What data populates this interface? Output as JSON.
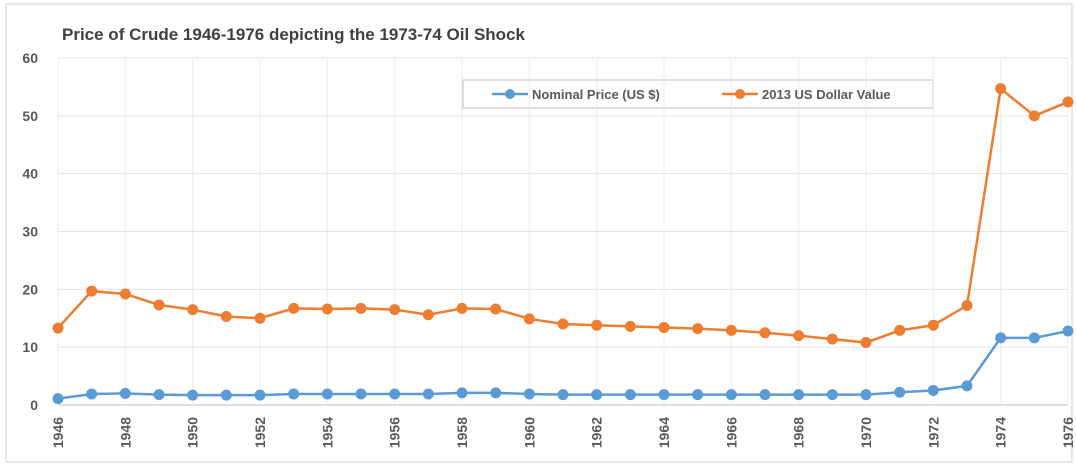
{
  "chart_data": {
    "type": "line",
    "title": "Price of Crude 1946-1976 depicting the 1973-74 Oil Shock",
    "x": [
      1946,
      1947,
      1948,
      1949,
      1950,
      1951,
      1952,
      1953,
      1954,
      1955,
      1956,
      1957,
      1958,
      1959,
      1960,
      1961,
      1962,
      1963,
      1964,
      1965,
      1966,
      1967,
      1968,
      1969,
      1970,
      1971,
      1972,
      1973,
      1974,
      1975,
      1976
    ],
    "series": [
      {
        "name": "Nominal Price (US $)",
        "color": "#5b9bd5",
        "values": [
          1.1,
          1.9,
          2.0,
          1.8,
          1.7,
          1.7,
          1.7,
          1.9,
          1.9,
          1.9,
          1.9,
          1.9,
          2.1,
          2.1,
          1.9,
          1.8,
          1.8,
          1.8,
          1.8,
          1.8,
          1.8,
          1.8,
          1.8,
          1.8,
          1.8,
          2.2,
          2.5,
          3.3,
          11.6,
          11.6,
          12.8
        ]
      },
      {
        "name": "2013 US Dollar Value",
        "color": "#ed7d31",
        "values": [
          13.3,
          19.7,
          19.2,
          17.3,
          16.5,
          15.3,
          15.0,
          16.7,
          16.6,
          16.7,
          16.5,
          15.6,
          16.7,
          16.6,
          14.9,
          14.0,
          13.8,
          13.6,
          13.4,
          13.2,
          12.9,
          12.5,
          12.0,
          11.4,
          10.8,
          12.9,
          13.8,
          17.2,
          54.7,
          50.0,
          52.4
        ]
      }
    ],
    "xlim": [
      1946,
      1976
    ],
    "xticks": [
      1946,
      1948,
      1950,
      1952,
      1954,
      1956,
      1958,
      1960,
      1962,
      1964,
      1966,
      1968,
      1970,
      1972,
      1974,
      1976
    ],
    "ylim": [
      0,
      60
    ],
    "yticks": [
      0,
      10,
      20,
      30,
      40,
      50,
      60
    ],
    "grid": true,
    "legend": "top"
  }
}
